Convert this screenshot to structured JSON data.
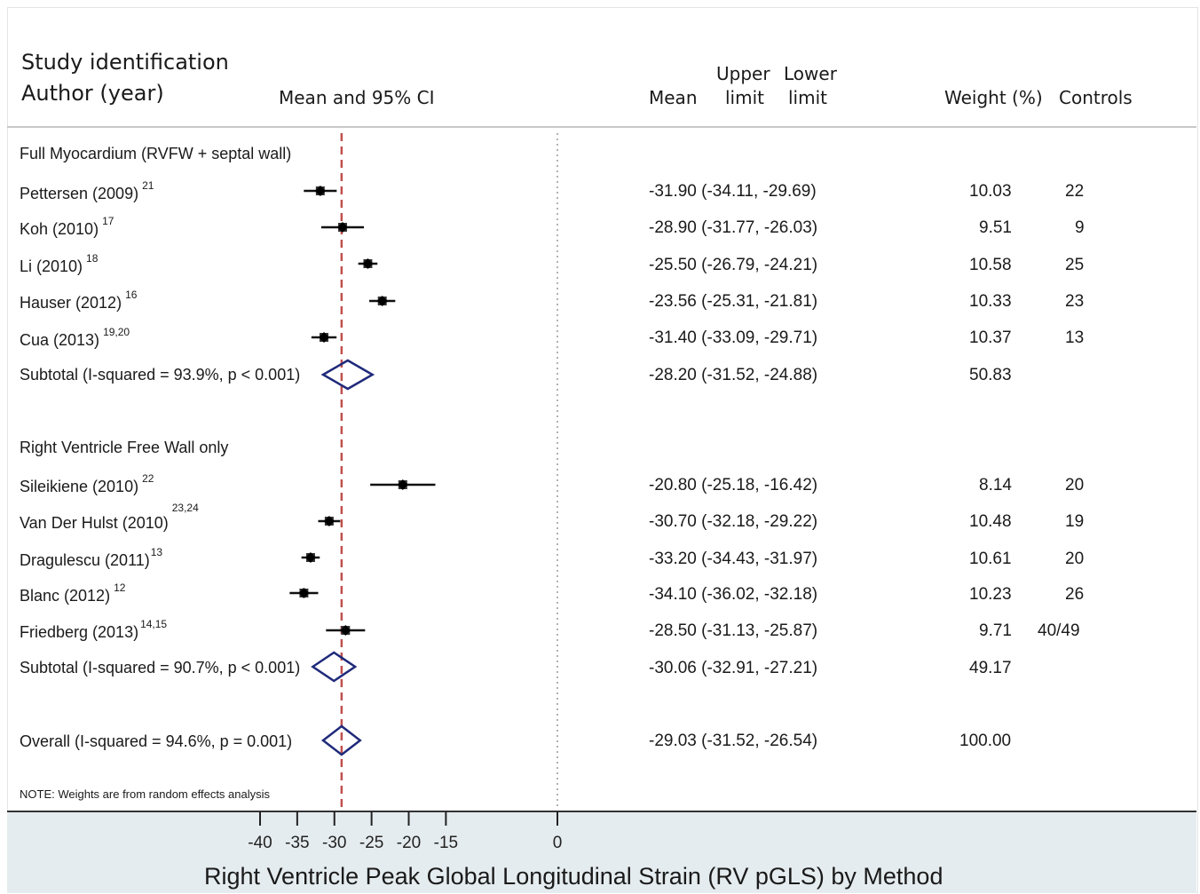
{
  "header": {
    "col_study_line1": "Study identification",
    "col_study_line2": "Author (year)",
    "col_plot": "Mean and 95% CI",
    "col_mean": "Mean",
    "col_upper_line1": "Upper",
    "col_upper_line2": "limit",
    "col_lower_line1": "Lower",
    "col_lower_line2": "limit",
    "col_weight": "Weight (%)",
    "col_controls": "Controls"
  },
  "groups": [
    {
      "label": "Full Myocardium (RVFW + septal wall)",
      "studies": [
        {
          "name": "Pettersen (2009)",
          "ref": "21",
          "ci_text": "-31.90 (-34.11, -29.69)",
          "weight_text": "10.03",
          "controls": "22"
        },
        {
          "name": "Koh (2010)",
          "ref": "17",
          "ci_text": "-28.90 (-31.77, -26.03)",
          "weight_text": "9.51",
          "controls": "9"
        },
        {
          "name": "Li  (2010)",
          "ref": "18",
          "ci_text": "-25.50 (-26.79, -24.21)",
          "weight_text": "10.58",
          "controls": "25"
        },
        {
          "name": "Hauser (2012)",
          "ref": "16",
          "ci_text": "-23.56 (-25.31, -21.81)",
          "weight_text": "10.33",
          "controls": "23"
        },
        {
          "name": "Cua (2013)",
          "ref": "19,20",
          "ci_text": "-31.40 (-33.09, -29.71)",
          "weight_text": "10.37",
          "controls": "13"
        }
      ],
      "subtotal": {
        "label": "Subtotal  (I-squared = 93.9%, p < 0.001)",
        "ci_text": "-28.20 (-31.52, -24.88)",
        "weight_text": "50.83"
      }
    },
    {
      "label": "Right Ventricle Free Wall only",
      "studies": [
        {
          "name": "Sileikiene (2010)",
          "ref": "22",
          "ci_text": "-20.80 (-25.18, -16.42)",
          "weight_text": "8.14",
          "controls": "20"
        },
        {
          "name": "Van Der Hulst (2010)",
          "ref": "23,24",
          "ci_text": "-30.70 (-32.18, -29.22)",
          "weight_text": "10.48",
          "controls": "19"
        },
        {
          "name": "Dragulescu (2011)",
          "ref": "13",
          "ci_text": "-33.20 (-34.43, -31.97)",
          "weight_text": "10.61",
          "controls": "20"
        },
        {
          "name": "Blanc (2012)",
          "ref": "12",
          "ci_text": "-34.10 (-36.02, -32.18)",
          "weight_text": "10.23",
          "controls": "26"
        },
        {
          "name": "Friedberg (2013)",
          "ref": "14,15",
          "ci_text": "-28.50 (-31.13, -25.87)",
          "weight_text": "9.71",
          "controls": "40/49"
        }
      ],
      "subtotal": {
        "label": "Subtotal  (I-squared = 90.7%, p < 0.001)",
        "ci_text": "-30.06 (-32.91, -27.21)",
        "weight_text": "49.17"
      }
    }
  ],
  "overall": {
    "label": "Overall  (I-squared = 94.6%, p = 0.001)",
    "ci_text": "-29.03 (-31.52, -26.54)",
    "weight_text": "100.00"
  },
  "note": "NOTE: Weights are from random effects analysis",
  "colors": {
    "ci_line": "#111111",
    "diamond": "#1f2a7a",
    "reference_line": "#c0504d",
    "zero_line": "#999999",
    "axis_band": "#e5ecef"
  },
  "chart_data": {
    "type": "forest",
    "xlabel": "Right Ventricle Peak Global Longitudinal Strain (RV pGLS) by Method",
    "xlim": [
      -40,
      0
    ],
    "xticks": [
      -40,
      -35,
      -30,
      -25,
      -20,
      -15,
      0
    ],
    "reference_line": -29.03,
    "null_line": 0,
    "rows": [
      {
        "kind": "study",
        "group": 0,
        "mean": -31.9,
        "lower": -34.11,
        "upper": -29.69,
        "weight": 10.03
      },
      {
        "kind": "study",
        "group": 0,
        "mean": -28.9,
        "lower": -31.77,
        "upper": -26.03,
        "weight": 9.51
      },
      {
        "kind": "study",
        "group": 0,
        "mean": -25.5,
        "lower": -26.79,
        "upper": -24.21,
        "weight": 10.58
      },
      {
        "kind": "study",
        "group": 0,
        "mean": -23.56,
        "lower": -25.31,
        "upper": -21.81,
        "weight": 10.33
      },
      {
        "kind": "study",
        "group": 0,
        "mean": -31.4,
        "lower": -33.09,
        "upper": -29.71,
        "weight": 10.37
      },
      {
        "kind": "subtotal",
        "group": 0,
        "mean": -28.2,
        "lower": -31.52,
        "upper": -24.88,
        "weight": 50.83
      },
      {
        "kind": "study",
        "group": 1,
        "mean": -20.8,
        "lower": -25.18,
        "upper": -16.42,
        "weight": 8.14
      },
      {
        "kind": "study",
        "group": 1,
        "mean": -30.7,
        "lower": -32.18,
        "upper": -29.22,
        "weight": 10.48
      },
      {
        "kind": "study",
        "group": 1,
        "mean": -33.2,
        "lower": -34.43,
        "upper": -31.97,
        "weight": 10.61
      },
      {
        "kind": "study",
        "group": 1,
        "mean": -34.1,
        "lower": -36.02,
        "upper": -32.18,
        "weight": 10.23
      },
      {
        "kind": "study",
        "group": 1,
        "mean": -28.5,
        "lower": -31.13,
        "upper": -25.87,
        "weight": 9.71
      },
      {
        "kind": "subtotal",
        "group": 1,
        "mean": -30.06,
        "lower": -32.91,
        "upper": -27.21,
        "weight": 49.17
      },
      {
        "kind": "overall",
        "mean": -29.03,
        "lower": -31.52,
        "upper": -26.54,
        "weight": 100.0
      }
    ]
  }
}
